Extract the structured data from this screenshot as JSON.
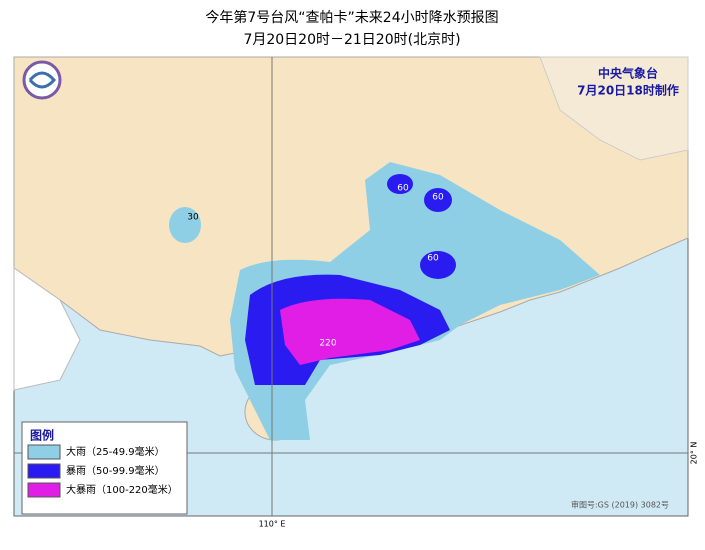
{
  "header": {
    "title": "今年第7号台风“查帕卡”未来24小时降水预报图",
    "subtitle": "7月20日20时－21日20时(北京时)"
  },
  "agency": {
    "name": "中央气象台",
    "date": "7月20日18时制作"
  },
  "legend": {
    "title": "图例",
    "items": [
      {
        "label": "大雨（25-49.9毫米）",
        "color": "#8ecfe6"
      },
      {
        "label": "暴雨（50-99.9毫米）",
        "color": "#2a1cf0"
      },
      {
        "label": "大暴雨（100-220毫米）",
        "color": "#e01ee6"
      }
    ]
  },
  "map": {
    "labels": [
      "30",
      "60",
      "60",
      "60",
      "220"
    ]
  },
  "grid": {
    "lon_label": "110° E",
    "lat_label": "20° N"
  },
  "footer": {
    "approval": "审图号:GS (2019) 3082号"
  }
}
